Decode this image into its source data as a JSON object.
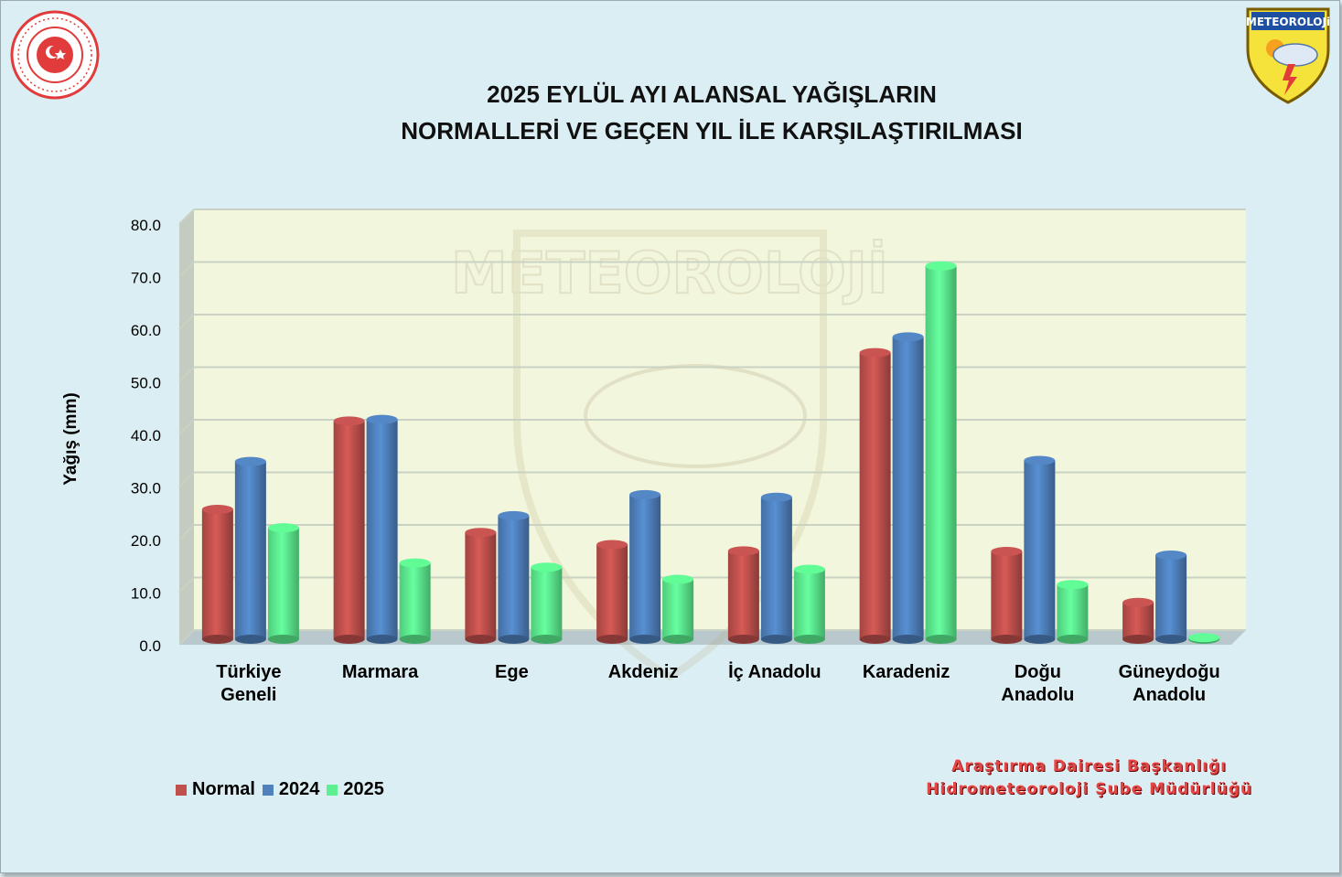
{
  "title_line1": "2025 EYLÜL AYI ALANSAL YAĞIŞLARIN",
  "title_line2": "NORMALLERİ VE GEÇEN YIL İLE KARŞILAŞTIRILMASI",
  "logos": {
    "left_icon": "ministry-seal-icon",
    "right_icon": "meteoroloji-shield-icon",
    "right_text": "METEOROLOJi",
    "watermark_text": "METEOROLOJİ"
  },
  "credit_line1": "Araştırma Dairesi Başkanlığı",
  "credit_line2": "Hidrometeoroloji Şube Müdürlüğü",
  "colors": {
    "normal": "#c0504d",
    "y2024": "#4f81bd",
    "y2025": "#5cf08f",
    "plot_bg": "#f1f6dc",
    "page_bg": "#dbeef3"
  },
  "chart_data": {
    "type": "bar",
    "title": "2025 EYLÜL AYI ALANSAL YAĞIŞLARIN NORMALLERİ VE GEÇEN YIL İLE KARŞILAŞTIRILMASI",
    "ylabel": "Yağış (mm)",
    "xlabel": "",
    "ylim": [
      0,
      80
    ],
    "yticks": [
      "0.0",
      "10.0",
      "20.0",
      "30.0",
      "40.0",
      "50.0",
      "60.0",
      "70.0",
      "80.0"
    ],
    "categories": [
      [
        "Türkiye",
        "Geneli"
      ],
      [
        "Marmara"
      ],
      [
        "Ege"
      ],
      [
        "Akdeniz"
      ],
      [
        "İç Anadolu"
      ],
      [
        "Karadeniz"
      ],
      [
        "Doğu",
        "Anadolu"
      ],
      [
        "Güneydoğu",
        "Anadolu"
      ]
    ],
    "series": [
      {
        "name": "Normal",
        "values": [
          24.7,
          41.5,
          20.3,
          18.0,
          16.8,
          54.5,
          16.7,
          7.0
        ]
      },
      {
        "name": "2024",
        "values": [
          33.8,
          41.8,
          23.5,
          27.5,
          27.0,
          57.5,
          34.0,
          16.0
        ]
      },
      {
        "name": "2025",
        "values": [
          21.2,
          14.5,
          13.7,
          11.4,
          13.3,
          71.0,
          10.4,
          0.3
        ]
      }
    ],
    "grid": true,
    "legend_position": "bottom-left"
  }
}
